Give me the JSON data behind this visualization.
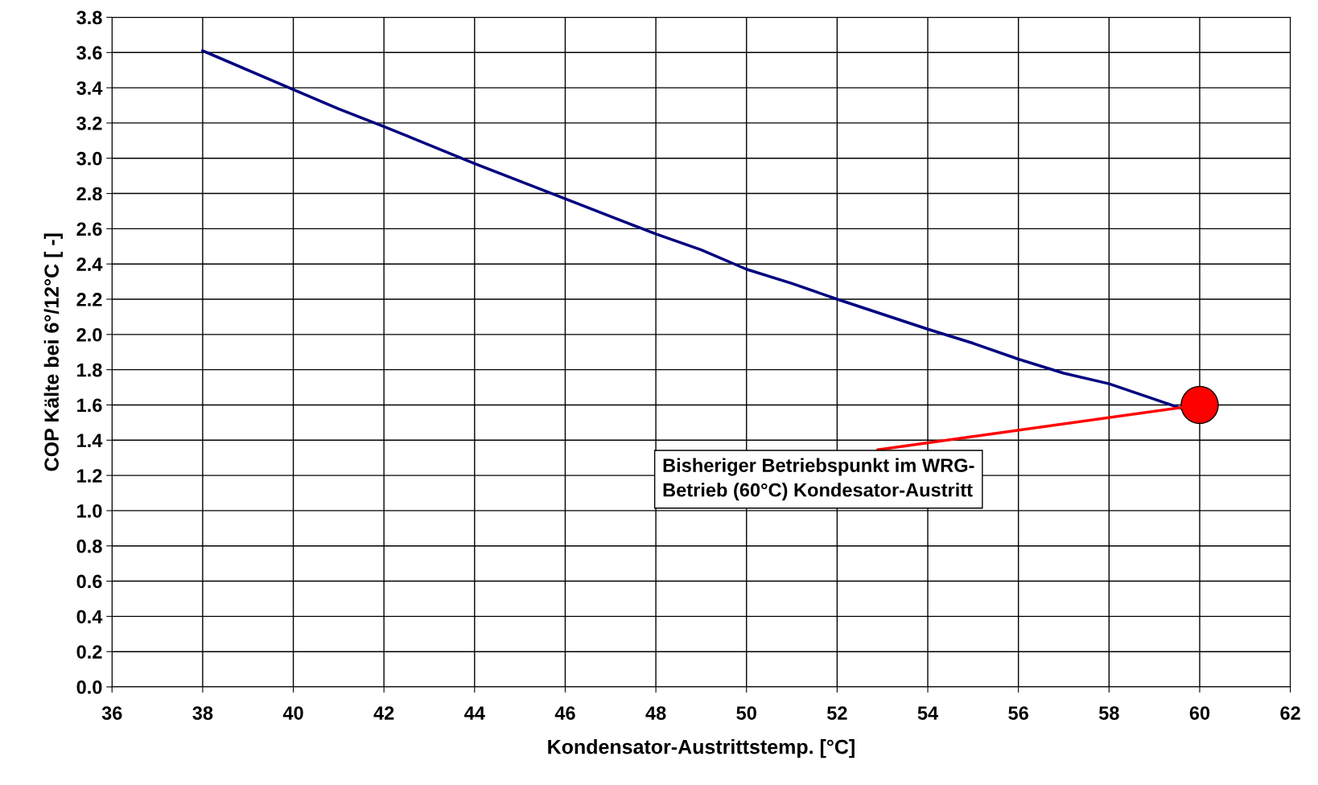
{
  "chart_data": {
    "type": "line",
    "xlabel": "Kondensator-Austrittstemp. [°C]",
    "ylabel": "COP Kälte bei 6°/12°C [ -]",
    "xlim": [
      36,
      62
    ],
    "xticks": [
      36,
      38,
      40,
      42,
      44,
      46,
      48,
      50,
      52,
      54,
      56,
      58,
      60,
      62
    ],
    "ylim": [
      0,
      3.8
    ],
    "yticks": [
      {
        "value": 0,
        "label": "0.0"
      },
      0.2,
      0.4,
      0.6,
      0.8,
      {
        "value": 1,
        "label": "1.0"
      },
      1.2,
      1.4,
      1.6,
      1.8,
      {
        "value": 2,
        "label": "2.0"
      },
      2.2,
      2.4,
      2.6,
      2.8,
      {
        "value": 3,
        "label": "3.0"
      },
      3.2,
      3.4,
      3.6,
      3.8
    ],
    "grid": true,
    "series": [
      {
        "color": "#000080",
        "x": [
          38,
          40,
          41,
          42,
          44,
          46,
          48,
          49,
          50,
          51,
          52,
          54,
          55,
          56,
          57,
          58,
          59.6
        ],
        "values": [
          3.61,
          3.39,
          3.28,
          3.18,
          2.97,
          2.77,
          2.57,
          2.48,
          2.37,
          2.29,
          2.2,
          2.03,
          1.95,
          1.86,
          1.78,
          1.72,
          1.58
        ]
      },
      {
        "type": "scatter",
        "color": "#ff0000",
        "x": [
          60
        ],
        "values": [
          1.6
        ],
        "marker": "circle"
      }
    ],
    "annotations": [
      {
        "text": "Bisheriger Betriebspunkt im WRG-\nBetrieb (60°C) Kondesator-Austritt",
        "x": 60,
        "y": 1.6
      }
    ]
  }
}
